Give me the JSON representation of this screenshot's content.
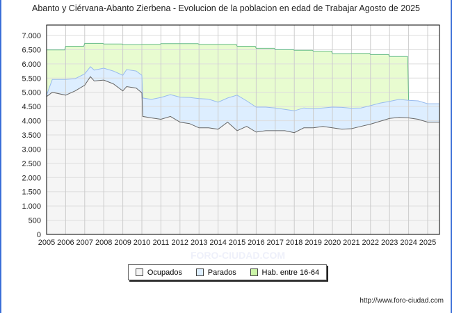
{
  "chart_data": {
    "type": "area",
    "title": "Abanto y Ciérvana-Abanto Zierbena - Evolucion de la poblacion en edad de Trabajar Agosto de 2025",
    "xlabel": "",
    "ylabel": "",
    "xlim": [
      2005,
      2025.6
    ],
    "ylim": [
      0,
      7000
    ],
    "yticks": [
      0,
      500,
      1000,
      1500,
      2000,
      2500,
      3000,
      3500,
      4000,
      4500,
      5000,
      5500,
      6000,
      6500,
      7000
    ],
    "ytick_labels": [
      "0",
      "500",
      "1.000",
      "1.500",
      "2.000",
      "2.500",
      "3.000",
      "3.500",
      "4.000",
      "4.500",
      "5.000",
      "5.500",
      "6.000",
      "6.500",
      "7.000"
    ],
    "xticks": [
      "2005",
      "2006",
      "2007",
      "2008",
      "2009",
      "2010",
      "2011",
      "2012",
      "2013",
      "2014",
      "2015",
      "2016",
      "2017",
      "2018",
      "2019",
      "2020",
      "2021",
      "2022",
      "2023",
      "2024",
      "2025"
    ],
    "grid": true,
    "legend_position": "bottom",
    "x": [
      2005,
      2005.3,
      2006,
      2006.5,
      2007,
      2007.3,
      2007.5,
      2008,
      2008.5,
      2009,
      2009.2,
      2009.7,
      2010,
      2010.05,
      2010.5,
      2011,
      2011.5,
      2012,
      2012.5,
      2013,
      2013.5,
      2014,
      2014.5,
      2015,
      2015.5,
      2016,
      2016.5,
      2017,
      2017.5,
      2018,
      2018.5,
      2019,
      2019.5,
      2020,
      2020.5,
      2021,
      2021.5,
      2022,
      2022.5,
      2023,
      2023.5,
      2024,
      2024.5,
      2025,
      2025.6
    ],
    "series": [
      {
        "name": "Ocupados",
        "color": "#f5f5f5",
        "line": "#666666",
        "values": [
          4850,
          5000,
          4900,
          5050,
          5250,
          5550,
          5400,
          5430,
          5300,
          5050,
          5200,
          5150,
          4980,
          4150,
          4100,
          4050,
          4150,
          3950,
          3900,
          3750,
          3750,
          3700,
          3950,
          3650,
          3800,
          3600,
          3650,
          3650,
          3650,
          3580,
          3750,
          3750,
          3800,
          3750,
          3700,
          3720,
          3800,
          3880,
          3980,
          4080,
          4120,
          4100,
          4050,
          3950,
          3950
        ]
      },
      {
        "name": "Parados",
        "color": "#ddeeff",
        "line": "#99bbee",
        "values": [
          50,
          450,
          550,
          430,
          400,
          350,
          380,
          420,
          450,
          550,
          600,
          600,
          620,
          650,
          650,
          770,
          770,
          880,
          920,
          1030,
          1010,
          950,
          850,
          1250,
          900,
          880,
          830,
          800,
          750,
          770,
          700,
          670,
          650,
          730,
          770,
          720,
          650,
          650,
          640,
          600,
          630,
          620,
          650,
          650,
          650
        ]
      },
      {
        "name": "Hab. entre 16-64",
        "color": "#e8fcd0",
        "line": "#66bb88",
        "steps": [
          [
            2005,
            6490
          ],
          [
            2006,
            6620
          ],
          [
            2007,
            6720
          ],
          [
            2008,
            6700
          ],
          [
            2009,
            6680
          ],
          [
            2010,
            6690
          ],
          [
            2011,
            6710
          ],
          [
            2012,
            6710
          ],
          [
            2013,
            6690
          ],
          [
            2014,
            6690
          ],
          [
            2015,
            6620
          ],
          [
            2016,
            6550
          ],
          [
            2017,
            6500
          ],
          [
            2018,
            6480
          ],
          [
            2019,
            6450
          ],
          [
            2020,
            6360
          ],
          [
            2021,
            6370
          ],
          [
            2022,
            6330
          ],
          [
            2023,
            6260
          ]
        ],
        "steps_end": 2024
      }
    ]
  },
  "footer": {
    "url": "http://www.foro-ciudad.com",
    "watermark": "FORO-CIUDAD.COM"
  }
}
